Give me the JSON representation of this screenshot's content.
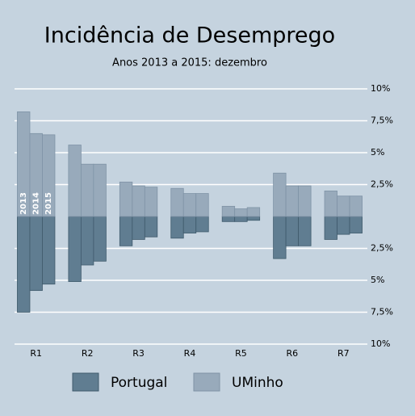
{
  "chart_data": {
    "type": "diverging-bar",
    "title": "Incidência de Desemprego",
    "subtitle": "Anos 2013 a 2015: dezembro",
    "categories": [
      "R1",
      "R2",
      "R3",
      "R4",
      "R5",
      "R6",
      "R7"
    ],
    "year_labels": [
      "2013",
      "2014",
      "2015"
    ],
    "series": [
      {
        "name": "Portugal",
        "color": "#607d91",
        "values": [
          [
            -7.5,
            -5.8,
            -5.3
          ],
          [
            -5.1,
            -3.8,
            -3.5
          ],
          [
            -2.3,
            -1.8,
            -1.6
          ],
          [
            -1.7,
            -1.3,
            -1.2
          ],
          [
            -0.4,
            -0.4,
            -0.3
          ],
          [
            -3.3,
            -2.3,
            -2.3
          ],
          [
            -1.8,
            -1.4,
            -1.3
          ]
        ]
      },
      {
        "name": "UMinho",
        "color": "#98aabb",
        "values": [
          [
            8.2,
            6.5,
            6.4
          ],
          [
            5.6,
            4.1,
            4.1
          ],
          [
            2.7,
            2.4,
            2.3
          ],
          [
            2.2,
            1.8,
            1.8
          ],
          [
            0.8,
            0.6,
            0.7
          ],
          [
            3.4,
            2.4,
            2.4
          ],
          [
            2.0,
            1.6,
            1.6
          ]
        ]
      }
    ],
    "ylim": [
      -10,
      10
    ],
    "yticks": [
      {
        "value": 10,
        "label": "10%"
      },
      {
        "value": 7.5,
        "label": "7,5%"
      },
      {
        "value": 5,
        "label": "5%"
      },
      {
        "value": 2.5,
        "label": "2,5%"
      },
      {
        "value": -2.5,
        "label": "2,5%"
      },
      {
        "value": -5,
        "label": "5%"
      },
      {
        "value": -7.5,
        "label": "7,5%"
      },
      {
        "value": -10,
        "label": "10%"
      }
    ],
    "grid": true
  }
}
